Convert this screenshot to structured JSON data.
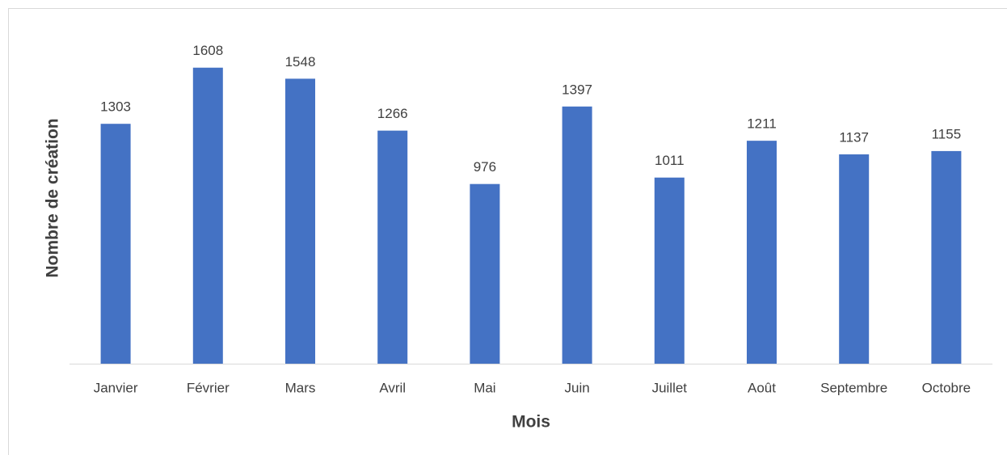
{
  "chart_data": {
    "type": "bar",
    "x_label": "Mois",
    "y_label": "Nombre de création",
    "categories": [
      "Janvier",
      "Février",
      "Mars",
      "Avril",
      "Mai",
      "Juin",
      "Juillet",
      "Août",
      "Septembre",
      "Octobre"
    ],
    "values": [
      1303,
      1608,
      1548,
      1266,
      976,
      1397,
      1011,
      1211,
      1137,
      1155
    ],
    "color": "#4472c4",
    "ylim": [
      0,
      1800
    ]
  }
}
